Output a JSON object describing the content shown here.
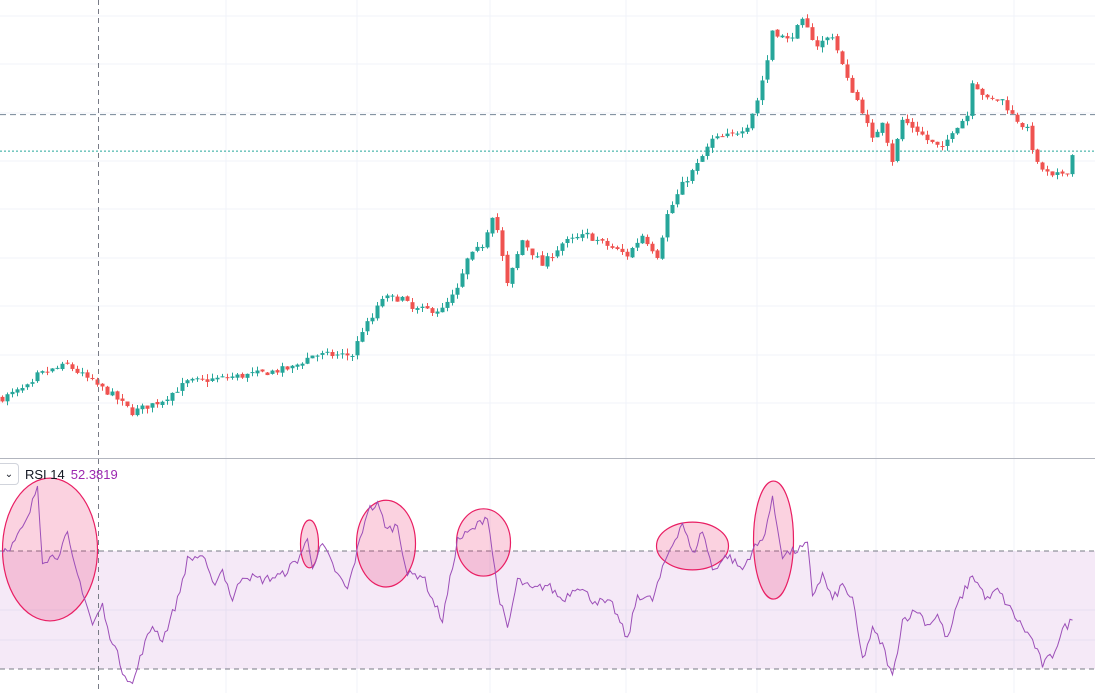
{
  "indicator": {
    "name": "RSI 14",
    "value": "52.3819"
  },
  "colors": {
    "up": "#26a69a",
    "down": "#ef5350",
    "rsi_line": "#9c4fb8",
    "rsi_band": "#9c27b0",
    "annotation": "#e91e63",
    "grid": "#f0f3fa"
  },
  "chart_data": [
    {
      "type": "candlestick",
      "title": "",
      "axes_labels_visible": false,
      "grid": true,
      "ylim": [
        0,
        105
      ],
      "bars": 219,
      "close_anchors": [
        [
          0,
          12.1
        ],
        [
          6,
          15.1
        ],
        [
          7,
          17.4
        ],
        [
          13,
          19.8
        ],
        [
          18,
          15.8
        ],
        [
          22,
          12.8
        ],
        [
          26,
          8.8
        ],
        [
          32,
          11.6
        ],
        [
          37,
          15.8
        ],
        [
          44,
          16.7
        ],
        [
          52,
          17.9
        ],
        [
          58,
          19.1
        ],
        [
          62,
          22.1
        ],
        [
          70,
          22.1
        ],
        [
          72,
          27.9
        ],
        [
          74,
          30.7
        ],
        [
          76,
          35.3
        ],
        [
          80,
          35.3
        ],
        [
          82,
          32.6
        ],
        [
          88,
          32.6
        ],
        [
          91,
          37.2
        ],
        [
          93,
          44.2
        ],
        [
          96,
          47.7
        ],
        [
          98,
          54.7
        ],
        [
          99,
          51.2
        ],
        [
          101,
          38.4
        ],
        [
          104,
          48.8
        ],
        [
          108,
          43
        ],
        [
          112,
          48.1
        ],
        [
          117,
          50
        ],
        [
          120,
          48.1
        ],
        [
          125,
          45.3
        ],
        [
          128,
          50
        ],
        [
          131,
          45.3
        ],
        [
          133,
          54.7
        ],
        [
          136,
          61.6
        ],
        [
          139,
          66.3
        ],
        [
          142,
          72.1
        ],
        [
          146,
          73.3
        ],
        [
          149,
          75.6
        ],
        [
          151,
          81.4
        ],
        [
          153,
          90.7
        ],
        [
          154,
          97.7
        ],
        [
          157,
          95.3
        ],
        [
          160,
          99.5
        ],
        [
          163,
          94.2
        ],
        [
          166,
          96.5
        ],
        [
          169,
          86
        ],
        [
          172,
          79
        ],
        [
          174,
          72
        ],
        [
          176,
          76.7
        ],
        [
          178,
          67.4
        ],
        [
          180,
          76.7
        ],
        [
          183,
          74.4
        ],
        [
          185,
          72.1
        ],
        [
          188,
          69.8
        ],
        [
          190,
          74.4
        ],
        [
          193,
          77.9
        ],
        [
          194,
          86
        ],
        [
          197,
          81.4
        ],
        [
          200,
          81.4
        ],
        [
          202,
          77.9
        ],
        [
          205,
          74.4
        ],
        [
          207,
          66.3
        ],
        [
          210,
          63.3
        ],
        [
          213,
          65
        ],
        [
          214,
          68.6
        ]
      ],
      "horizontal_lines": [
        {
          "price": 78,
          "style": "dashed",
          "color": "#758696"
        },
        {
          "price": 69.5,
          "style": "dotted",
          "color": "#26a69a"
        }
      ],
      "crosshair_bar": 19.2
    },
    {
      "type": "line",
      "title": "RSI 14",
      "ylim": [
        22,
        101
      ],
      "bands": {
        "upper": 70,
        "lower": 30
      },
      "points": [
        [
          0,
          70.3
        ],
        [
          2,
          72
        ],
        [
          5,
          80.5
        ],
        [
          7,
          92.4
        ],
        [
          8,
          67
        ],
        [
          11,
          68.6
        ],
        [
          13,
          75.4
        ],
        [
          14,
          67
        ],
        [
          16,
          56.8
        ],
        [
          18,
          44.9
        ],
        [
          19,
          48.3
        ],
        [
          20,
          51.7
        ],
        [
          21,
          43.2
        ],
        [
          22,
          39.8
        ],
        [
          24,
          29.7
        ],
        [
          26,
          24.6
        ],
        [
          28,
          36.4
        ],
        [
          30,
          44.9
        ],
        [
          32,
          39.8
        ],
        [
          35,
          53.4
        ],
        [
          37,
          67
        ],
        [
          40,
          68.6
        ],
        [
          42,
          58.5
        ],
        [
          44,
          63.6
        ],
        [
          46,
          53.4
        ],
        [
          48,
          61.9
        ],
        [
          52,
          60.2
        ],
        [
          56,
          61.9
        ],
        [
          59,
          67
        ],
        [
          61,
          73.7
        ],
        [
          62,
          65.3
        ],
        [
          64,
          72
        ],
        [
          67,
          61.9
        ],
        [
          69,
          56.8
        ],
        [
          71,
          70.3
        ],
        [
          73,
          83.9
        ],
        [
          75,
          85.6
        ],
        [
          77,
          77.1
        ],
        [
          79,
          78.8
        ],
        [
          81,
          61.9
        ],
        [
          84,
          61.9
        ],
        [
          86,
          53.4
        ],
        [
          88,
          46.6
        ],
        [
          91,
          73.7
        ],
        [
          94,
          77.1
        ],
        [
          97,
          82.2
        ],
        [
          99,
          56.8
        ],
        [
          101,
          43.2
        ],
        [
          103,
          60.2
        ],
        [
          106,
          56.8
        ],
        [
          109,
          58.5
        ],
        [
          112,
          53.4
        ],
        [
          115,
          58.5
        ],
        [
          118,
          53.4
        ],
        [
          122,
          51.7
        ],
        [
          125,
          39.8
        ],
        [
          127,
          55.1
        ],
        [
          130,
          53.4
        ],
        [
          133,
          68.6
        ],
        [
          136,
          79.8
        ],
        [
          138,
          68.6
        ],
        [
          140,
          77.1
        ],
        [
          142,
          63.6
        ],
        [
          145,
          68.6
        ],
        [
          148,
          63.6
        ],
        [
          150,
          70.3
        ],
        [
          152,
          73.7
        ],
        [
          154,
          87.3
        ],
        [
          156,
          68.6
        ],
        [
          159,
          70.3
        ],
        [
          161,
          72
        ],
        [
          162,
          55.1
        ],
        [
          164,
          61.9
        ],
        [
          166,
          53.4
        ],
        [
          168,
          58.5
        ],
        [
          170,
          53.4
        ],
        [
          172,
          33
        ],
        [
          174,
          43.2
        ],
        [
          176,
          38.1
        ],
        [
          178,
          27
        ],
        [
          180,
          46.6
        ],
        [
          183,
          50
        ],
        [
          185,
          44.9
        ],
        [
          187,
          48.3
        ],
        [
          189,
          39.8
        ],
        [
          191,
          51.7
        ],
        [
          194,
          61.9
        ],
        [
          197,
          53.4
        ],
        [
          199,
          56.8
        ],
        [
          201,
          51.7
        ],
        [
          203,
          46.6
        ],
        [
          206,
          39.8
        ],
        [
          208,
          31.4
        ],
        [
          210,
          34.7
        ],
        [
          212,
          43.2
        ],
        [
          214,
          46.6
        ]
      ],
      "annotations": [
        {
          "shape": "ellipse",
          "bar": 9.5,
          "rsi": 70.5,
          "bar_radius": 9.5,
          "rsi_radius": 24.2
        },
        {
          "shape": "ellipse",
          "bar": 61.4,
          "rsi": 72.4,
          "bar_radius": 1.8,
          "rsi_radius": 8.1
        },
        {
          "shape": "ellipse",
          "bar": 76.7,
          "rsi": 72.5,
          "bar_radius": 5.9,
          "rsi_radius": 14.7
        },
        {
          "shape": "ellipse",
          "bar": 96.2,
          "rsi": 72.9,
          "bar_radius": 5.4,
          "rsi_radius": 11.4
        },
        {
          "shape": "ellipse",
          "bar": 138,
          "rsi": 71.7,
          "bar_radius": 7.2,
          "rsi_radius": 8.1
        },
        {
          "shape": "ellipse",
          "bar": 154.2,
          "rsi": 73.7,
          "bar_radius": 4,
          "rsi_radius": 20
        }
      ]
    }
  ]
}
